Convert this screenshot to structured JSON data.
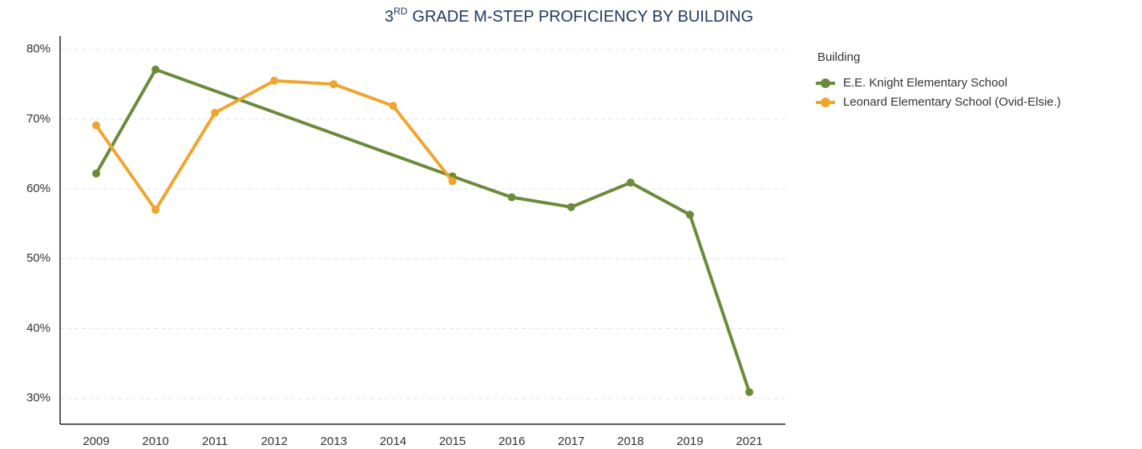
{
  "chart_data": {
    "type": "line",
    "title": {
      "main": "3",
      "sup": "RD",
      "rest": "GRADE M-STEP PROFICIENCY BY BUILDING"
    },
    "legend_title": "Building",
    "legend": "right",
    "categories": [
      "2009",
      "2010",
      "2011",
      "2012",
      "2013",
      "2014",
      "2015",
      "2016",
      "2017",
      "2018",
      "2019",
      "2021"
    ],
    "series": [
      {
        "name": "E.E. Knight Elementary School",
        "color": "#6b8a3a",
        "values": [
          62.2,
          77.1,
          null,
          null,
          null,
          null,
          61.8,
          58.8,
          57.4,
          60.9,
          56.3,
          30.9
        ]
      },
      {
        "name": "Leonard Elementary School (Ovid-Elsie.)",
        "color": "#efa52e",
        "values": [
          69.1,
          57,
          70.9,
          75.5,
          75,
          71.9,
          61.1,
          null,
          null,
          null,
          null,
          null
        ]
      }
    ],
    "ylim": [
      26.3,
      81.9
    ],
    "yticks": [
      {
        "value": 30,
        "label": "30%"
      },
      {
        "value": 40,
        "label": "40%"
      },
      {
        "value": 50,
        "label": "50%"
      },
      {
        "value": 60,
        "label": "60%"
      },
      {
        "value": 70,
        "label": "70%"
      },
      {
        "value": 80,
        "label": "80%"
      }
    ],
    "grid": true
  }
}
